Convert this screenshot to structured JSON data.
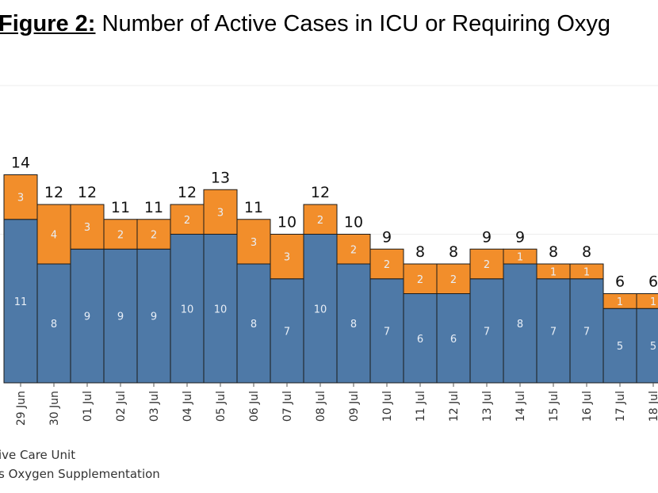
{
  "title": {
    "figure_label": "Figure 2:",
    "text": "Number of Active Cases in ICU or Requiring Oxyg"
  },
  "chart_data": {
    "type": "bar",
    "stacked": true,
    "categories": [
      "29 Jun",
      "30 Jun",
      "01 Jul",
      "02 Jul",
      "03 Jul",
      "04 Jul",
      "05 Jul",
      "06 Jul",
      "07 Jul",
      "08 Jul",
      "09 Jul",
      "10 Jul",
      "11 Jul",
      "12 Jul",
      "13 Jul",
      "14 Jul",
      "15 Jul",
      "16 Jul",
      "17 Jul",
      "18 Jul"
    ],
    "series": [
      {
        "name": "ive Care Unit",
        "color": "#4e79a7",
        "values": [
          11,
          8,
          9,
          9,
          9,
          10,
          10,
          8,
          7,
          10,
          8,
          7,
          6,
          6,
          7,
          8,
          7,
          7,
          5,
          5
        ]
      },
      {
        "name": "s Oxygen Supplementation",
        "color": "#f28e2b",
        "values": [
          3,
          4,
          3,
          2,
          2,
          2,
          3,
          3,
          3,
          2,
          2,
          2,
          2,
          2,
          2,
          1,
          1,
          1,
          1,
          1
        ]
      }
    ],
    "totals": [
      14,
      12,
      12,
      11,
      11,
      12,
      13,
      11,
      10,
      12,
      10,
      9,
      8,
      8,
      9,
      9,
      8,
      8,
      6,
      6
    ],
    "ylim": [
      0,
      20
    ],
    "grid": true,
    "legend_position": "bottom-left"
  }
}
